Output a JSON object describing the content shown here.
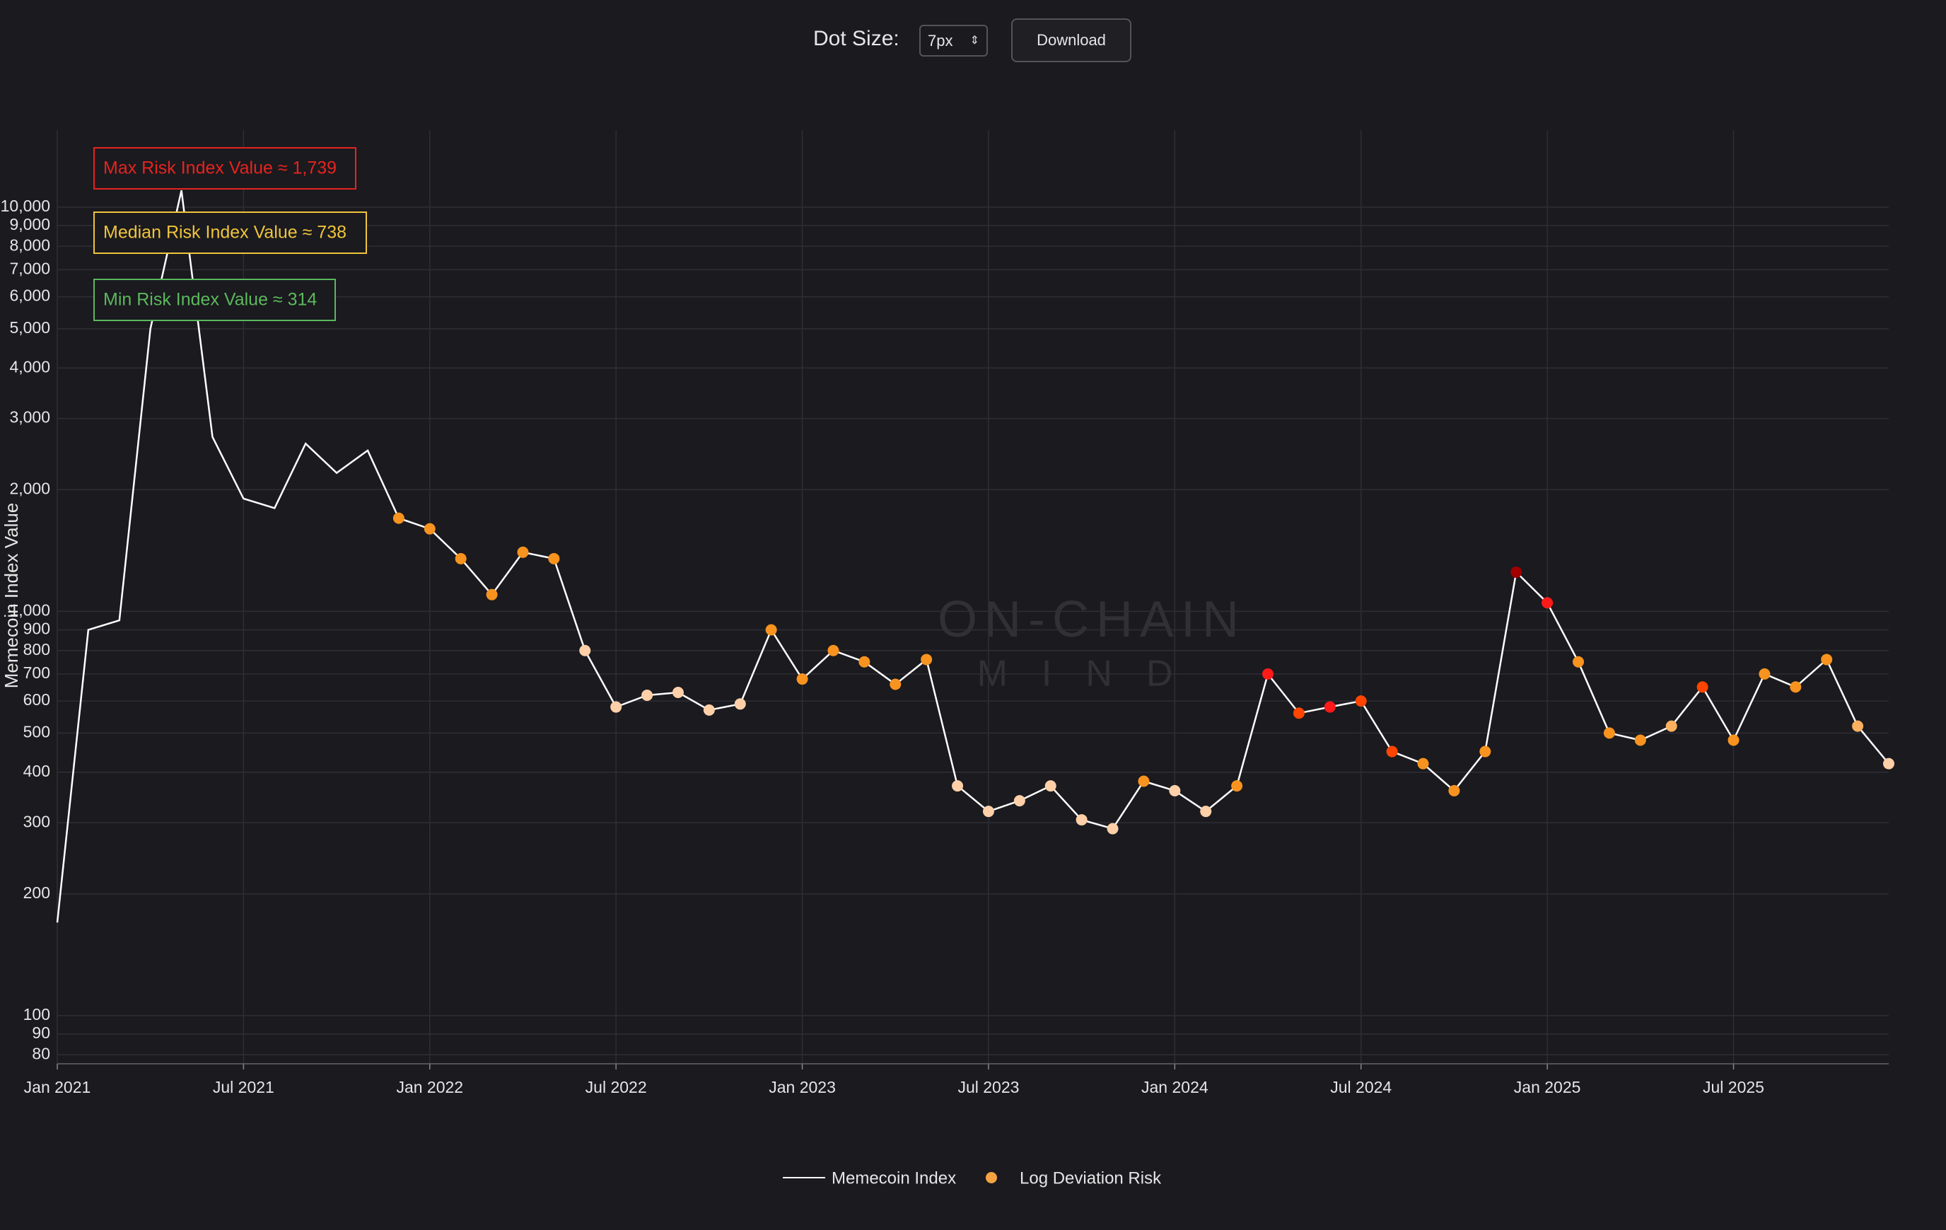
{
  "controls": {
    "dot_size_label": "Dot Size:",
    "dot_size": "7px",
    "download": "Download"
  },
  "chart_data": {
    "type": "line",
    "y_label": "Memecoin Index Value",
    "log_y": true,
    "grid": true,
    "watermark": [
      "ON-CHAIN",
      "MIND"
    ],
    "x": [
      "2021-01",
      "2021-02",
      "2021-03",
      "2021-04",
      "2021-05",
      "2021-06",
      "2021-07",
      "2021-08",
      "2021-09",
      "2021-10",
      "2021-11",
      "2021-12",
      "2022-01",
      "2022-02",
      "2022-03",
      "2022-04",
      "2022-05",
      "2022-06",
      "2022-07",
      "2022-08",
      "2022-09",
      "2022-10",
      "2022-11",
      "2022-12",
      "2023-01",
      "2023-02",
      "2023-03",
      "2023-04",
      "2023-05",
      "2023-06",
      "2023-07",
      "2023-08",
      "2023-09",
      "2023-10",
      "2023-11",
      "2023-12",
      "2024-01",
      "2024-02",
      "2024-03",
      "2024-04",
      "2024-05",
      "2024-06",
      "2024-07",
      "2024-08",
      "2024-09",
      "2024-10",
      "2024-11",
      "2024-12",
      "2025-01",
      "2025-02",
      "2025-03",
      "2025-04",
      "2025-05",
      "2025-06",
      "2025-07",
      "2025-08",
      "2025-09",
      "2025-10",
      "2025-11",
      "2025-12"
    ],
    "xlim": [
      "2021-01",
      "2025-12"
    ],
    "xticks": [
      {
        "value": "2021-01",
        "label": "Jan 2021"
      },
      {
        "value": "2021-07",
        "label": "Jul 2021"
      },
      {
        "value": "2022-01",
        "label": "Jan 2022"
      },
      {
        "value": "2022-07",
        "label": "Jul 2022"
      },
      {
        "value": "2023-01",
        "label": "Jan 2023"
      },
      {
        "value": "2023-07",
        "label": "Jul 2023"
      },
      {
        "value": "2024-01",
        "label": "Jan 2024"
      },
      {
        "value": "2024-07",
        "label": "Jul 2024"
      },
      {
        "value": "2025-01",
        "label": "Jan 2025"
      },
      {
        "value": "2025-07",
        "label": "Jul 2025"
      }
    ],
    "ylim": [
      76,
      15500
    ],
    "yticks": [
      80,
      90,
      100,
      200,
      300,
      400,
      500,
      600,
      700,
      800,
      900,
      {
        "value": 1000,
        "label": "1,000"
      },
      {
        "value": 2000,
        "label": "2,000"
      },
      {
        "value": 3000,
        "label": "3,000"
      },
      {
        "value": 4000,
        "label": "4,000"
      },
      {
        "value": 5000,
        "label": "5,000"
      },
      {
        "value": 6000,
        "label": "6,000"
      },
      {
        "value": 7000,
        "label": "7,000"
      },
      {
        "value": 8000,
        "label": "8,000"
      },
      {
        "value": 9000,
        "label": "9,000"
      },
      {
        "value": 10000,
        "label": "10,000"
      }
    ],
    "series": [
      {
        "name": "Memecoin Index",
        "color": "#ffffff",
        "values": [
          170,
          900,
          950,
          5000,
          11000,
          2700,
          1900,
          1800,
          2600,
          2200,
          2500,
          1700,
          1600,
          1350,
          1100,
          1400,
          1350,
          800,
          580,
          620,
          630,
          570,
          590,
          900,
          680,
          800,
          750,
          660,
          760,
          370,
          320,
          340,
          370,
          305,
          290,
          380,
          360,
          320,
          370,
          700,
          560,
          580,
          600,
          450,
          420,
          360,
          450,
          1250,
          1050,
          750,
          500,
          480,
          520,
          650,
          480,
          700,
          650,
          760,
          520,
          420
        ]
      },
      {
        "name": "Log Deviation Risk",
        "color": "#f5a342",
        "values": [
          null,
          null,
          null,
          null,
          null,
          null,
          null,
          null,
          null,
          null,
          null,
          1700,
          1600,
          1350,
          1100,
          1400,
          1350,
          800,
          580,
          620,
          630,
          570,
          590,
          900,
          680,
          800,
          750,
          660,
          760,
          370,
          320,
          340,
          370,
          305,
          290,
          380,
          360,
          320,
          370,
          700,
          560,
          580,
          600,
          450,
          420,
          360,
          450,
          1250,
          1050,
          750,
          500,
          480,
          520,
          650,
          480,
          700,
          650,
          760,
          520,
          420
        ],
        "colors": [
          null,
          null,
          null,
          null,
          null,
          null,
          null,
          null,
          null,
          null,
          null,
          "#f7931e",
          "#f7931e",
          "#f7931e",
          "#f7931e",
          "#f7931e",
          "#f7931e",
          "#ffd0a8",
          "#ffd0a8",
          "#ffd0a8",
          "#ffd0a8",
          "#ffd0a8",
          "#ffd0a8",
          "#f7931e",
          "#f7931e",
          "#f7931e",
          "#f7931e",
          "#f7931e",
          "#f7931e",
          "#ffd0a8",
          "#ffd0a8",
          "#ffd0a8",
          "#ffd0a8",
          "#ffd0a8",
          "#ffd0a8",
          "#f7931e",
          "#ffd0a8",
          "#ffd0a8",
          "#f7931e",
          "#ff1a1a",
          "#ff4500",
          "#ff1a1a",
          "#ff4500",
          "#ff4500",
          "#f7931e",
          "#f7931e",
          "#f7931e",
          "#a00000",
          "#ff1a1a",
          "#f7931e",
          "#f7931e",
          "#f7931e",
          "#fbb060",
          "#ff4500",
          "#f7931e",
          "#f7931e",
          "#f7931e",
          "#f7931e",
          "#fbb060",
          "#ffd0a8"
        ]
      }
    ],
    "annotations": [
      {
        "text": "Max Risk Index Value ≈ 1,739",
        "color": "#e8231f"
      },
      {
        "text": "Median Risk Index Value ≈ 738",
        "color": "#f0c43a"
      },
      {
        "text": "Min Risk Index Value ≈ 314",
        "color": "#5cb85c"
      }
    ]
  }
}
